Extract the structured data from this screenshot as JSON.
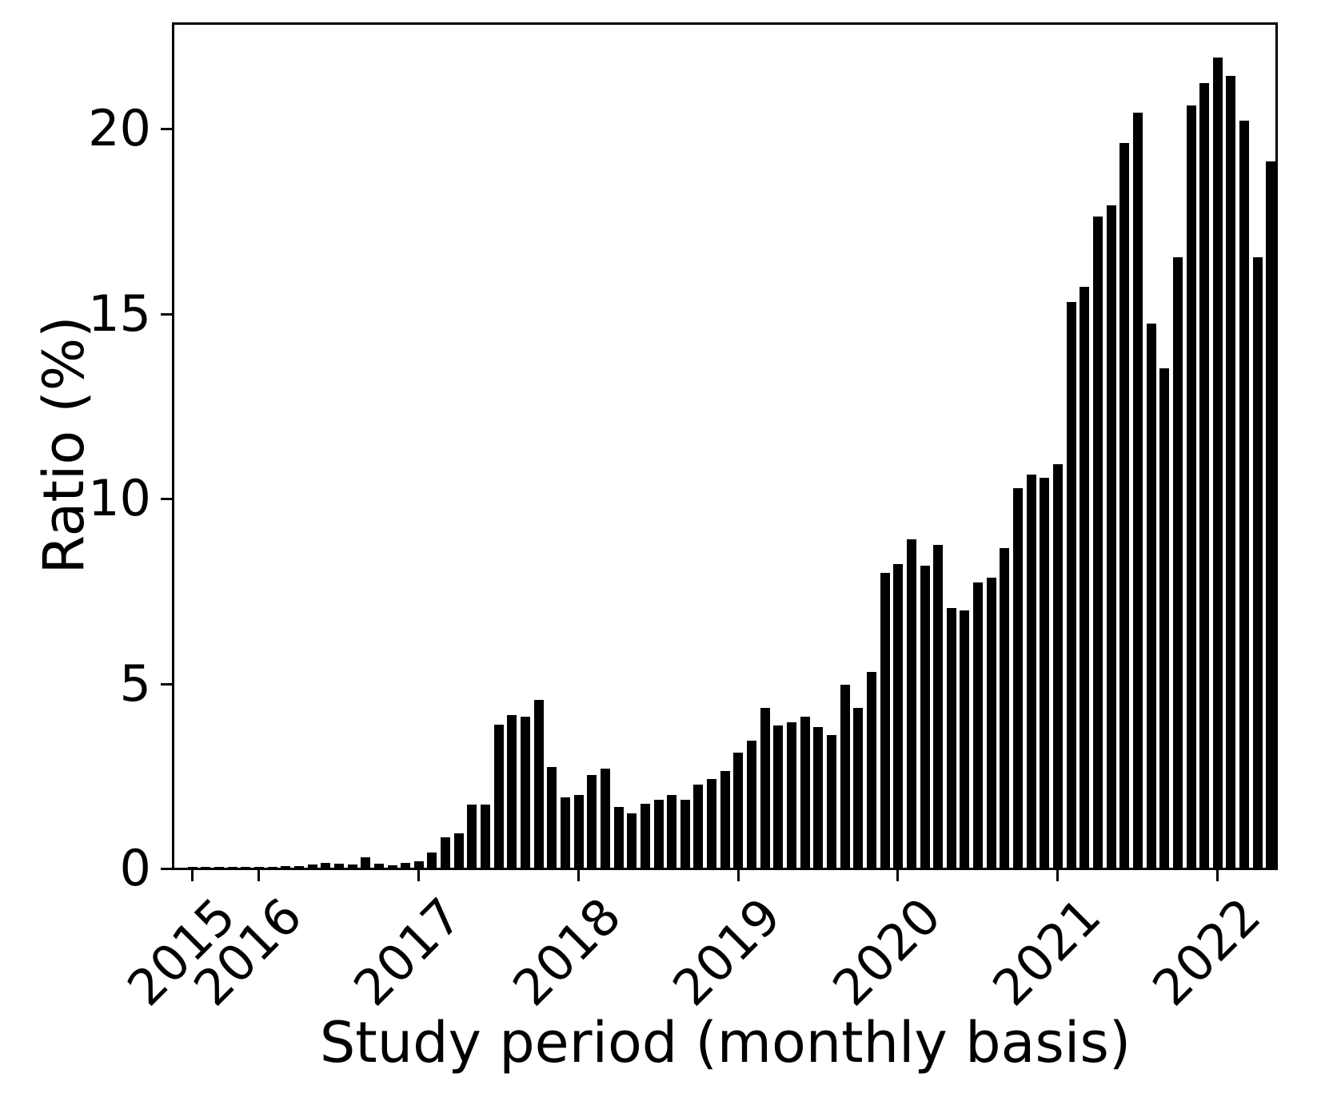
{
  "chart_data": {
    "type": "bar",
    "title": "",
    "xlabel": "Study period (monthly basis)",
    "ylabel": "Ratio (%)",
    "bar_color": "#000000",
    "background_color": "#ffffff",
    "grid": false,
    "legend": "none",
    "ylim": [
      0,
      22.85
    ],
    "yticks": [
      0,
      5,
      10,
      15,
      20
    ],
    "x_axis_unit": "month",
    "start_month": "2015-08",
    "end_month": "2022-05",
    "year_tick_labels": [
      "2015",
      "2016",
      "2017",
      "2018",
      "2019",
      "2020",
      "2021",
      "2022"
    ],
    "year_tick_bar_indices": [
      0,
      5,
      17,
      29,
      41,
      53,
      65,
      77
    ],
    "x": [
      "2015-08",
      "2015-09",
      "2015-10",
      "2015-11",
      "2015-12",
      "2016-01",
      "2016-02",
      "2016-03",
      "2016-04",
      "2016-05",
      "2016-06",
      "2016-07",
      "2016-08",
      "2016-09",
      "2016-10",
      "2016-11",
      "2016-12",
      "2017-01",
      "2017-02",
      "2017-03",
      "2017-04",
      "2017-05",
      "2017-06",
      "2017-07",
      "2017-08",
      "2017-09",
      "2017-10",
      "2017-11",
      "2017-12",
      "2018-01",
      "2018-02",
      "2018-03",
      "2018-04",
      "2018-05",
      "2018-06",
      "2018-07",
      "2018-08",
      "2018-09",
      "2018-10",
      "2018-11",
      "2018-12",
      "2019-01",
      "2019-02",
      "2019-03",
      "2019-04",
      "2019-05",
      "2019-06",
      "2019-07",
      "2019-08",
      "2019-09",
      "2019-10",
      "2019-11",
      "2019-12",
      "2020-01",
      "2020-02",
      "2020-03",
      "2020-04",
      "2020-05",
      "2020-06",
      "2020-07",
      "2020-08",
      "2020-09",
      "2020-10",
      "2020-11",
      "2020-12",
      "2021-01",
      "2021-02",
      "2021-03",
      "2021-04",
      "2021-05",
      "2021-06",
      "2021-07",
      "2021-08",
      "2021-09",
      "2021-10",
      "2021-11",
      "2021-12",
      "2022-01",
      "2022-02",
      "2022-03",
      "2022-04",
      "2022-05"
    ],
    "values": [
      0.01,
      0.01,
      0.02,
      0.02,
      0.03,
      0.02,
      0.03,
      0.04,
      0.05,
      0.09,
      0.12,
      0.1,
      0.09,
      0.27,
      0.11,
      0.06,
      0.12,
      0.18,
      0.4,
      0.83,
      0.92,
      1.7,
      1.7,
      3.86,
      4.13,
      4.08,
      4.53,
      2.72,
      1.89,
      1.97,
      2.5,
      2.68,
      1.65,
      1.47,
      1.72,
      1.83,
      1.97,
      1.83,
      2.24,
      2.4,
      2.62,
      3.11,
      3.43,
      4.33,
      3.85,
      3.93,
      4.08,
      3.81,
      3.58,
      4.95,
      4.33,
      5.3,
      7.97,
      8.21,
      8.87,
      8.17,
      8.73,
      7.02,
      6.95,
      7.71,
      7.83,
      8.65,
      10.25,
      10.63,
      10.55,
      10.9,
      15.3,
      15.7,
      17.6,
      17.9,
      19.6,
      20.4,
      14.7,
      13.5,
      16.5,
      20.6,
      21.2,
      21.9,
      21.4,
      20.2,
      16.5,
      19.1
    ]
  }
}
